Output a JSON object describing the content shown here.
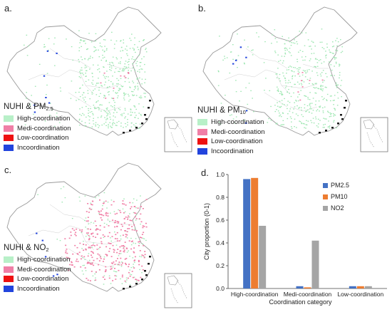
{
  "panels": [
    {
      "label": "a.",
      "legend_title": "NUHI & PM",
      "legend_sub": "2.5",
      "pollutant": "pm25"
    },
    {
      "label": "b.",
      "legend_title": "NUHI & PM",
      "legend_sub": "10",
      "pollutant": "pm10"
    },
    {
      "label": "c.",
      "legend_title": "NUHI & NO",
      "legend_sub": "2",
      "pollutant": "no2"
    }
  ],
  "legend": [
    {
      "label": "High-coordination",
      "color": "#b8f0c8"
    },
    {
      "label": "Medi-coordination",
      "color": "#f07fa6"
    },
    {
      "label": "Low-coordination",
      "color": "#ee1111"
    },
    {
      "label": "Incoordination",
      "color": "#2244dd"
    }
  ],
  "chart_label": "d.",
  "chart_data": {
    "type": "bar",
    "categories": [
      "High-coordination",
      "Medi-coordination",
      "Low-coordination"
    ],
    "series": [
      {
        "name": "PM2.5",
        "color": "#4472c4",
        "values": [
          0.96,
          0.02,
          0.02
        ]
      },
      {
        "name": "PM10",
        "color": "#ed7d31",
        "values": [
          0.97,
          0.01,
          0.02
        ]
      },
      {
        "name": "NO2",
        "color": "#a5a5a5",
        "values": [
          0.55,
          0.42,
          0.02
        ]
      }
    ],
    "xlabel": "Coordination category",
    "ylabel": "City proportion (0-1)",
    "ylim": [
      0,
      1.0
    ],
    "yticks": [
      "0.0",
      "0.2",
      "0.4",
      "0.6",
      "0.8",
      "1.0"
    ],
    "legend_position": "right"
  }
}
